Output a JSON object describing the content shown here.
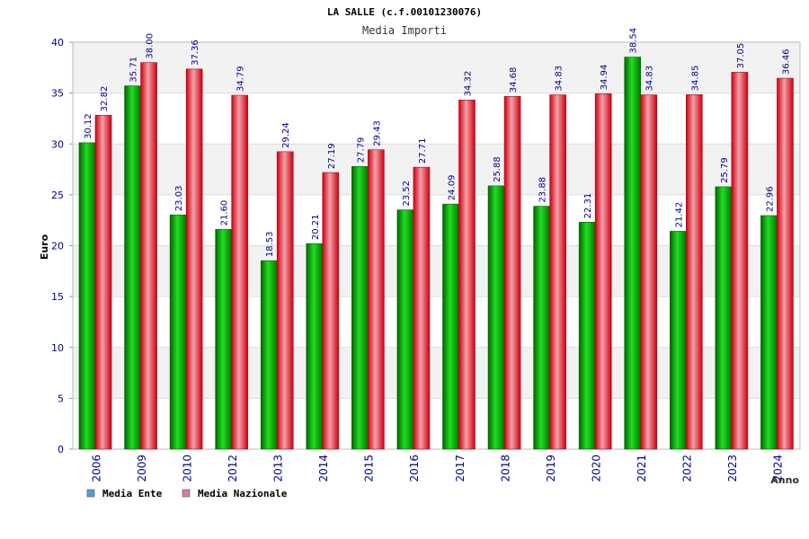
{
  "chart_data": {
    "type": "bar",
    "title": "LA SALLE (c.f.00101230076)",
    "subtitle": "Media Importi",
    "ylabel": "Euro",
    "xlabel": "Anno",
    "ylim": [
      0,
      40
    ],
    "yticks": [
      0,
      5,
      10,
      15,
      20,
      25,
      30,
      35,
      40
    ],
    "grid": true,
    "legend_position": "bottom-left",
    "categories": [
      "2006",
      "2009",
      "2010",
      "2012",
      "2013",
      "2014",
      "2015",
      "2016",
      "2017",
      "2018",
      "2019",
      "2020",
      "2021",
      "2022",
      "2023",
      "2024"
    ],
    "series": [
      {
        "name": "Media Ente",
        "color": "#00aa00",
        "legend_color": "#5b9bd5",
        "values": [
          30.12,
          35.71,
          23.03,
          21.6,
          18.53,
          20.21,
          27.79,
          23.52,
          24.09,
          25.88,
          23.88,
          22.31,
          38.54,
          21.42,
          25.79,
          22.96
        ],
        "labels": [
          "30.12",
          "35.71",
          "23.03",
          "21.60",
          "18.53",
          "20.21",
          "27.79",
          "23.52",
          "24.09",
          "25.88",
          "23.88",
          "22.31",
          "38.54",
          "21.42",
          "25.79",
          "22.96"
        ]
      },
      {
        "name": "Media Nazionale",
        "color": "#dd1122",
        "legend_color": "#d77ba8",
        "values": [
          32.82,
          38.0,
          37.36,
          34.79,
          29.24,
          27.19,
          29.43,
          27.71,
          34.32,
          34.68,
          34.83,
          34.94,
          34.83,
          34.85,
          37.05,
          36.46
        ],
        "labels": [
          "32.82",
          "38.00",
          "37.36",
          "34.79",
          "29.24",
          "27.19",
          "29.43",
          "27.71",
          "34.32",
          "34.68",
          "34.83",
          "34.94",
          "34.83",
          "34.85",
          "37.05",
          "36.46"
        ]
      }
    ]
  }
}
